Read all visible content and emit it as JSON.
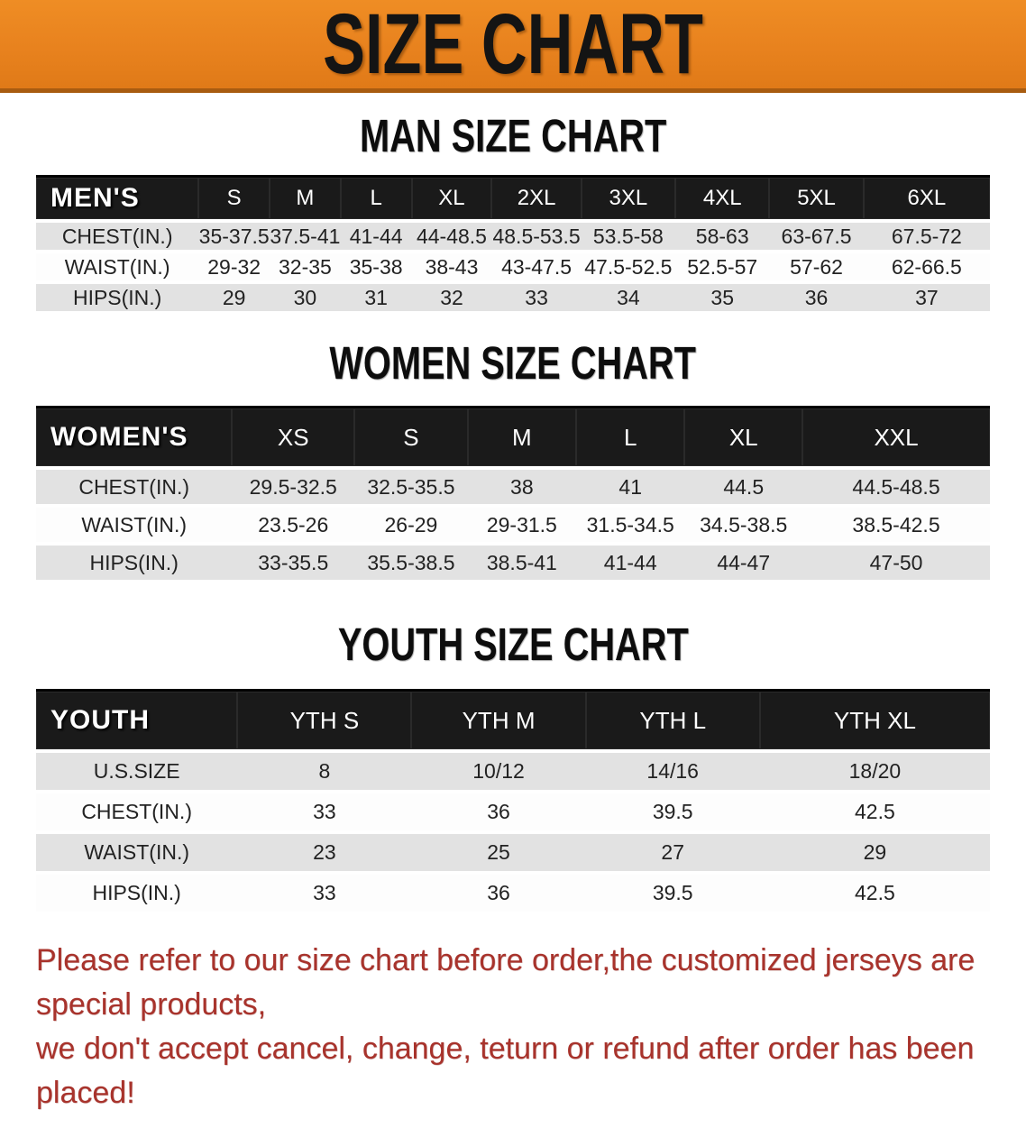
{
  "banner": {
    "title": "SIZE CHART",
    "bg_color": "#e8821e",
    "text_color": "#141414"
  },
  "colors": {
    "table_band_bg": "#1a1a1a",
    "table_stripe": "#e2e2e2",
    "disclaimer_red": "#a8332c"
  },
  "sections": [
    {
      "title": "MAN SIZE CHART",
      "table": {
        "corner_label": "MEN'S",
        "columns": [
          "S",
          "M",
          "L",
          "XL",
          "2XL",
          "3XL",
          "4XL",
          "5XL",
          "6XL"
        ],
        "rows": [
          {
            "label": "CHEST(IN.)",
            "values": [
              "35-37.5",
              "37.5-41",
              "41-44",
              "44-48.5",
              "48.5-53.5",
              "53.5-58",
              "58-63",
              "63-67.5",
              "67.5-72"
            ]
          },
          {
            "label": "WAIST(IN.)",
            "values": [
              "29-32",
              "32-35",
              "35-38",
              "38-43",
              "43-47.5",
              "47.5-52.5",
              "52.5-57",
              "57-62",
              "62-66.5"
            ]
          },
          {
            "label": "HIPS(IN.)",
            "values": [
              "29",
              "30",
              "31",
              "32",
              "33",
              "34",
              "35",
              "36",
              "37"
            ]
          }
        ]
      }
    },
    {
      "title": "WOMEN SIZE CHART",
      "table": {
        "corner_label": "WOMEN'S",
        "columns": [
          "XS",
          "S",
          "M",
          "L",
          "XL",
          "XXL"
        ],
        "rows": [
          {
            "label": "CHEST(IN.)",
            "values": [
              "29.5-32.5",
              "32.5-35.5",
              "38",
              "41",
              "44.5",
              "44.5-48.5"
            ]
          },
          {
            "label": "WAIST(IN.)",
            "values": [
              "23.5-26",
              "26-29",
              "29-31.5",
              "31.5-34.5",
              "34.5-38.5",
              "38.5-42.5"
            ]
          },
          {
            "label": "HIPS(IN.)",
            "values": [
              "33-35.5",
              "35.5-38.5",
              "38.5-41",
              "41-44",
              "44-47",
              "47-50"
            ]
          }
        ]
      }
    },
    {
      "title": "YOUTH SIZE CHART",
      "table": {
        "corner_label": "YOUTH",
        "columns": [
          "YTH S",
          "YTH M",
          "YTH L",
          "YTH XL"
        ],
        "rows": [
          {
            "label": "U.S.SIZE",
            "values": [
              "8",
              "10/12",
              "14/16",
              "18/20"
            ]
          },
          {
            "label": "CHEST(IN.)",
            "values": [
              "33",
              "36",
              "39.5",
              "42.5"
            ]
          },
          {
            "label": "WAIST(IN.)",
            "values": [
              "23",
              "25",
              "27",
              "29"
            ]
          },
          {
            "label": "HIPS(IN.)",
            "values": [
              "33",
              "36",
              "39.5",
              "42.5"
            ]
          }
        ]
      }
    }
  ],
  "disclaimer": {
    "line1": "Please refer to our size chart before order,the customized jerseys are special products,",
    "line2": "we don't accept cancel, change, teturn or refund after order has been placed!"
  }
}
